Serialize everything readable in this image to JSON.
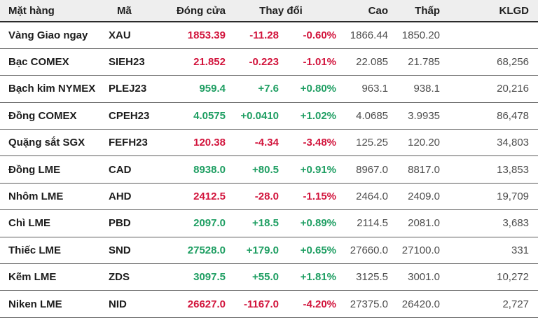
{
  "table": {
    "header": {
      "item": "Mặt hàng",
      "code": "Mã",
      "close": "Đóng cửa",
      "change": "Thay đổi",
      "high": "Cao",
      "low": "Thấp",
      "volume": "KLGD"
    }
  },
  "colors": {
    "up": "#1e9e62",
    "down": "#d2143c",
    "header_bg": "#eeeeee",
    "header_text": "#1f1f1f",
    "header_border": "#2b2b2b",
    "row_border": "#5c5c5c",
    "row_text": "#4d4d4d",
    "name_text": "#1c1c1c"
  },
  "chart_data": {
    "type": "table",
    "columns": [
      "Mặt hàng",
      "Mã",
      "Đóng cửa",
      "Thay đổi",
      "Thay đổi %",
      "Cao",
      "Thấp",
      "KLGD"
    ],
    "rows": [
      {
        "name": "Vàng Giao ngay",
        "code": "XAU",
        "close": "1853.39",
        "change": "-11.28",
        "change_pct": "-0.60%",
        "high": "1866.44",
        "low": "1850.20",
        "volume": "",
        "direction": "down"
      },
      {
        "name": "Bạc COMEX",
        "code": "SIEH23",
        "close": "21.852",
        "change": "-0.223",
        "change_pct": "-1.01%",
        "high": "22.085",
        "low": "21.785",
        "volume": "68,256",
        "direction": "down"
      },
      {
        "name": "Bạch kim NYMEX",
        "code": "PLEJ23",
        "close": "959.4",
        "change": "+7.6",
        "change_pct": "+0.80%",
        "high": "963.1",
        "low": "938.1",
        "volume": "20,216",
        "direction": "up"
      },
      {
        "name": "Đồng COMEX",
        "code": "CPEH23",
        "close": "4.0575",
        "change": "+0.0410",
        "change_pct": "+1.02%",
        "high": "4.0685",
        "low": "3.9935",
        "volume": "86,478",
        "direction": "up"
      },
      {
        "name": "Quặng sắt SGX",
        "code": "FEFH23",
        "close": "120.38",
        "change": "-4.34",
        "change_pct": "-3.48%",
        "high": "125.25",
        "low": "120.20",
        "volume": "34,803",
        "direction": "down"
      },
      {
        "name": "Đồng LME",
        "code": "CAD",
        "close": "8938.0",
        "change": "+80.5",
        "change_pct": "+0.91%",
        "high": "8967.0",
        "low": "8817.0",
        "volume": "13,853",
        "direction": "up"
      },
      {
        "name": "Nhôm LME",
        "code": "AHD",
        "close": "2412.5",
        "change": "-28.0",
        "change_pct": "-1.15%",
        "high": "2464.0",
        "low": "2409.0",
        "volume": "19,709",
        "direction": "down"
      },
      {
        "name": "Chì LME",
        "code": "PBD",
        "close": "2097.0",
        "change": "+18.5",
        "change_pct": "+0.89%",
        "high": "2114.5",
        "low": "2081.0",
        "volume": "3,683",
        "direction": "up"
      },
      {
        "name": "Thiếc LME",
        "code": "SND",
        "close": "27528.0",
        "change": "+179.0",
        "change_pct": "+0.65%",
        "high": "27660.0",
        "low": "27100.0",
        "volume": "331",
        "direction": "up"
      },
      {
        "name": "Kẽm LME",
        "code": "ZDS",
        "close": "3097.5",
        "change": "+55.0",
        "change_pct": "+1.81%",
        "high": "3125.5",
        "low": "3001.0",
        "volume": "10,272",
        "direction": "up"
      },
      {
        "name": "Niken LME",
        "code": "NID",
        "close": "26627.0",
        "change": "-1167.0",
        "change_pct": "-4.20%",
        "high": "27375.0",
        "low": "26420.0",
        "volume": "2,727",
        "direction": "down"
      }
    ]
  }
}
